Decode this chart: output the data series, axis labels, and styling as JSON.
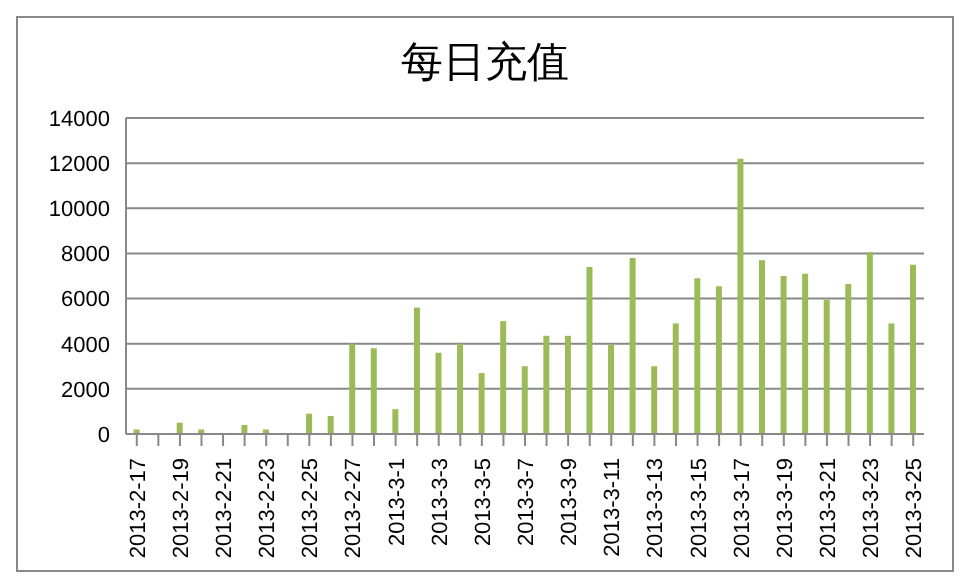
{
  "chart_data": {
    "type": "bar",
    "title": "每日充值",
    "categories": [
      "2013-2-17",
      null,
      "2013-2-19",
      null,
      "2013-2-21",
      null,
      "2013-2-23",
      null,
      "2013-2-25",
      null,
      "2013-2-27",
      null,
      "2013-3-1",
      null,
      "2013-3-3",
      null,
      "2013-3-5",
      null,
      "2013-3-7",
      null,
      "2013-3-9",
      null,
      "2013-3-11",
      null,
      "2013-3-13",
      null,
      "2013-3-15",
      null,
      "2013-3-17",
      null,
      "2013-3-19",
      null,
      "2013-3-21",
      null,
      "2013-3-23",
      null,
      "2013-3-25"
    ],
    "values": [
      200,
      0,
      500,
      200,
      0,
      400,
      200,
      0,
      900,
      800,
      4000,
      3800,
      1100,
      5600,
      3600,
      4000,
      2700,
      5000,
      3000,
      4350,
      4350,
      7400,
      3950,
      7800,
      3000,
      4900,
      6900,
      6550,
      12200,
      7700,
      7000,
      7100,
      5950,
      6650,
      8050,
      4900,
      7500
    ],
    "color": "#9bbb59",
    "ylim": [
      0,
      14000
    ],
    "yticks": [
      0,
      2000,
      4000,
      6000,
      8000,
      10000,
      12000,
      14000
    ],
    "grid": "y",
    "legend": false
  }
}
